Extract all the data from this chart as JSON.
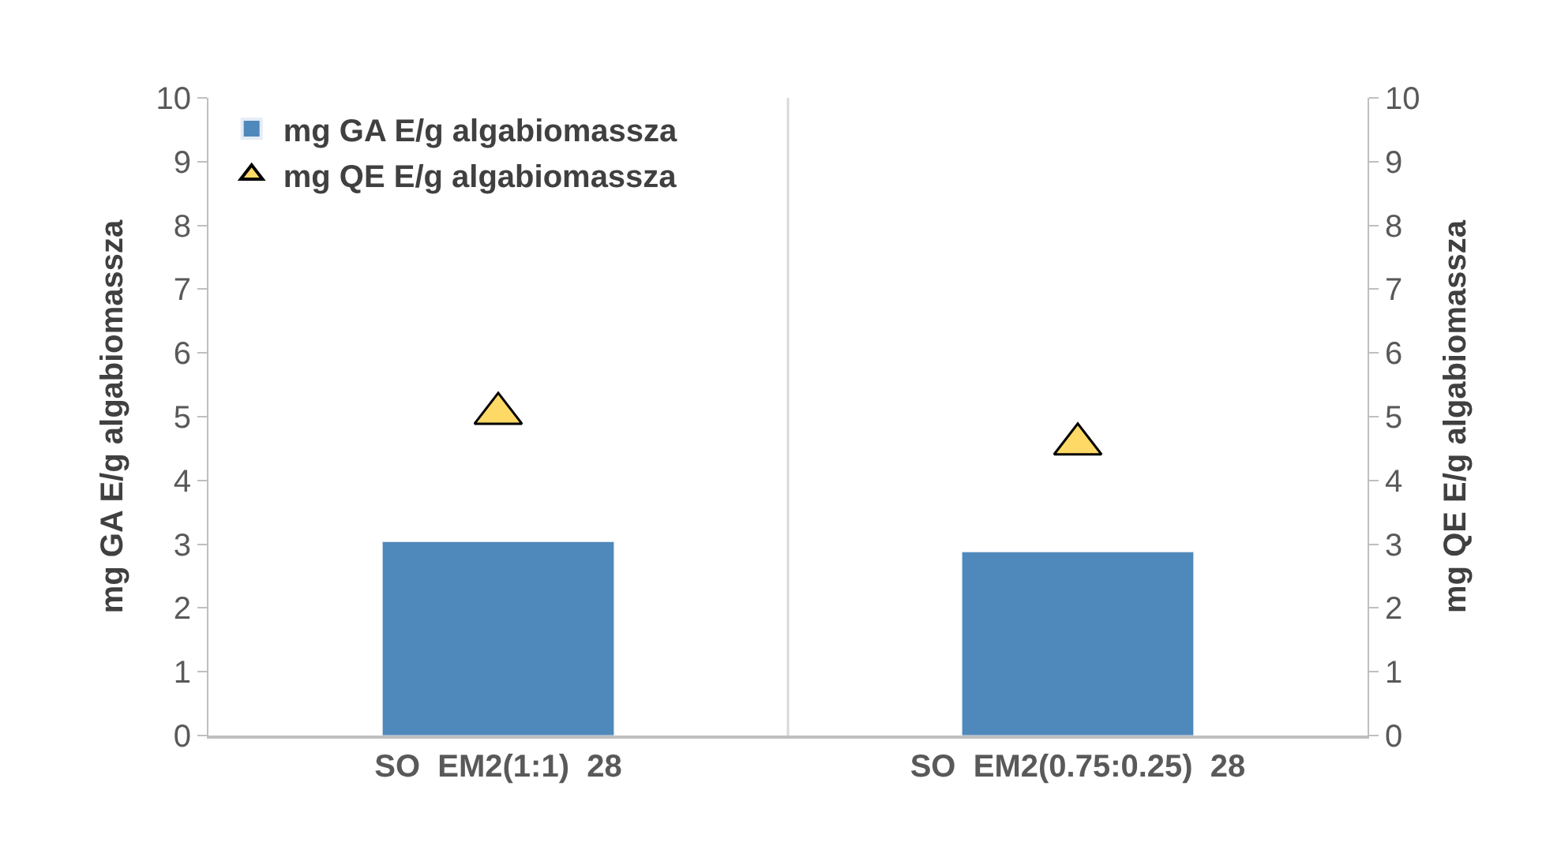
{
  "chart_data": {
    "type": "bar",
    "categories": [
      "SO  EM2(1:1)  28",
      "SO  EM2(0.75:0.25)  28"
    ],
    "series": [
      {
        "name": "mg GA E/g algabiomassza",
        "color": "#4f88bb",
        "values": [
          3.04,
          2.88
        ]
      },
      {
        "name": "mg QE E/g algabiomassza",
        "color": "#ffd966",
        "values": [
          5.05,
          4.57
        ],
        "type": "scatter",
        "axis": "y2",
        "marker": "triangle"
      }
    ],
    "ylabel": "mg GA E/g algabiomassza",
    "y2label": "mg QE E/g algabiomassza",
    "ylim": [
      0,
      10
    ],
    "yticks": [
      0,
      1,
      2,
      3,
      4,
      5,
      6,
      7,
      8,
      9,
      10
    ],
    "y2lim": [
      0,
      10
    ],
    "y2ticks": [
      0,
      1,
      2,
      3,
      4,
      5,
      6,
      7,
      8,
      9,
      10
    ],
    "grid": "x",
    "legend": "top left"
  }
}
